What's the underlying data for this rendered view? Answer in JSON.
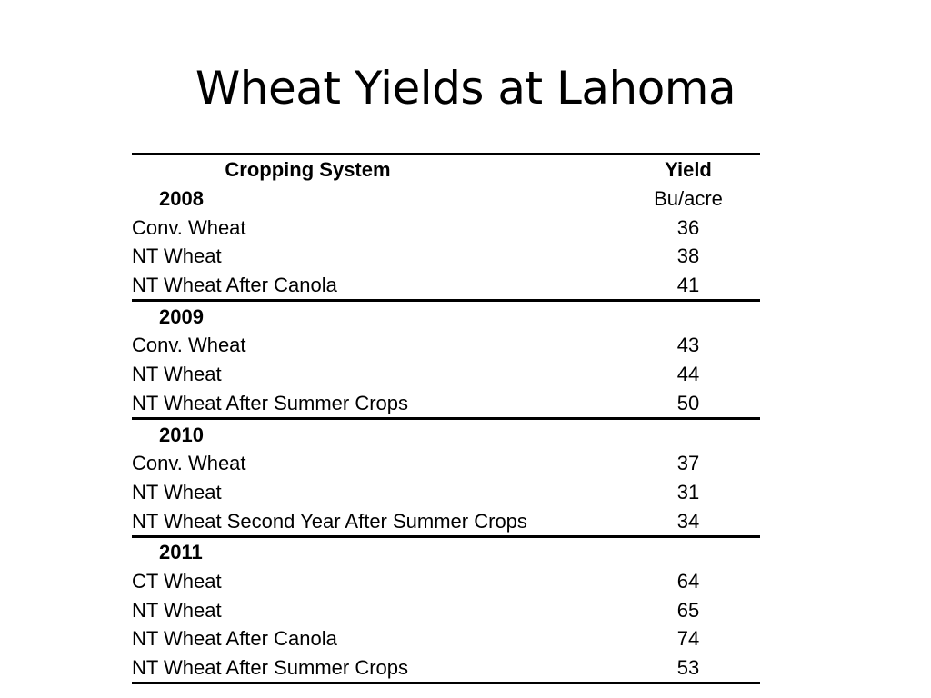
{
  "slide": {
    "title": "Wheat Yields at Lahoma"
  },
  "table": {
    "header": {
      "col1": "Cropping System",
      "col2": "Yield",
      "unit": "Bu/acre"
    },
    "groups": [
      {
        "year": "2008",
        "rows": [
          {
            "system": "Conv. Wheat",
            "yield": "36"
          },
          {
            "system": "NT Wheat",
            "yield": "38"
          },
          {
            "system": "NT Wheat After Canola",
            "yield": "41"
          }
        ]
      },
      {
        "year": "2009",
        "rows": [
          {
            "system": "Conv. Wheat",
            "yield": "43"
          },
          {
            "system": "NT Wheat",
            "yield": "44"
          },
          {
            "system": "NT Wheat After Summer Crops",
            "yield": "50"
          }
        ]
      },
      {
        "year": "2010",
        "rows": [
          {
            "system": "Conv. Wheat",
            "yield": "37"
          },
          {
            "system": "NT Wheat",
            "yield": "31"
          },
          {
            "system": "NT Wheat Second Year After Summer Crops",
            "yield": "34"
          }
        ]
      },
      {
        "year": "2011",
        "rows": [
          {
            "system": "CT Wheat",
            "yield": "64"
          },
          {
            "system": "NT Wheat",
            "yield": "65"
          },
          {
            "system": "NT Wheat After Canola",
            "yield": "74"
          },
          {
            "system": "NT Wheat After Summer Crops",
            "yield": "53"
          }
        ]
      }
    ]
  }
}
